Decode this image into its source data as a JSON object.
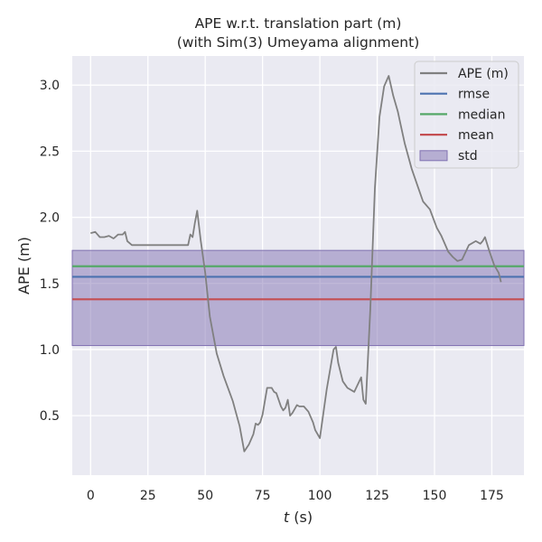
{
  "chart_data": {
    "type": "line",
    "title": "APE w.r.t. translation part (m)",
    "subtitle": "(with Sim(3) Umeyama alignment)",
    "xlabel_italic": "t",
    "xlabel_unit": " (s)",
    "ylabel": "APE (m)",
    "xlim": [
      -8,
      189
    ],
    "ylim": [
      0.05,
      3.22
    ],
    "xticks": [
      0,
      25,
      50,
      75,
      100,
      125,
      150,
      175
    ],
    "yticks": [
      0.5,
      1.0,
      1.5,
      2.0,
      2.5,
      3.0
    ],
    "ytick_labels": [
      "0.5",
      "1.0",
      "1.5",
      "2.0",
      "2.5",
      "3.0"
    ],
    "grid": true,
    "legend_position": "top-right",
    "colors": {
      "background": "#eaeaf2",
      "ape": "#808080",
      "rmse": "#4c72b0",
      "median": "#55a868",
      "mean": "#c44e52",
      "std": "#8172b2"
    },
    "legend": [
      {
        "key": "ape",
        "label": "APE (m)",
        "kind": "line"
      },
      {
        "key": "rmse",
        "label": "rmse",
        "kind": "line"
      },
      {
        "key": "median",
        "label": "median",
        "kind": "line"
      },
      {
        "key": "mean",
        "label": "mean",
        "kind": "line"
      },
      {
        "key": "std",
        "label": "std",
        "kind": "patch"
      }
    ],
    "statistics": {
      "rmse": 1.55,
      "median": 1.63,
      "mean": 1.38,
      "std_band": [
        1.03,
        1.75
      ]
    },
    "series": [
      {
        "name": "APE (m)",
        "x": [
          0,
          2,
          4,
          6,
          8,
          10,
          12,
          14,
          15,
          16,
          18,
          20,
          25,
          30,
          35,
          40,
          42.5,
          43.5,
          44.5,
          45.5,
          46.5,
          48,
          50,
          52,
          55,
          58,
          62,
          65,
          67,
          69,
          71,
          72,
          73,
          74,
          75,
          77,
          79,
          80,
          81,
          83,
          84,
          85,
          86,
          87,
          88,
          90,
          91,
          93,
          95,
          97,
          98,
          100,
          103,
          106,
          107,
          108,
          110,
          112,
          115,
          118,
          119,
          120,
          122,
          124,
          126,
          128,
          130,
          132,
          134,
          135,
          137,
          140,
          143,
          145,
          148,
          151,
          153,
          156,
          158,
          160,
          162,
          165,
          168,
          170,
          171,
          172,
          174,
          176,
          178,
          179
        ],
        "y": [
          1.88,
          1.89,
          1.85,
          1.85,
          1.86,
          1.84,
          1.87,
          1.87,
          1.89,
          1.82,
          1.79,
          1.79,
          1.79,
          1.79,
          1.79,
          1.79,
          1.79,
          1.87,
          1.85,
          1.96,
          2.05,
          1.83,
          1.58,
          1.25,
          0.97,
          0.8,
          0.61,
          0.42,
          0.23,
          0.28,
          0.36,
          0.44,
          0.43,
          0.45,
          0.51,
          0.71,
          0.71,
          0.68,
          0.67,
          0.57,
          0.54,
          0.56,
          0.62,
          0.5,
          0.52,
          0.58,
          0.57,
          0.57,
          0.53,
          0.45,
          0.39,
          0.33,
          0.7,
          1.0,
          1.02,
          0.9,
          0.76,
          0.71,
          0.68,
          0.79,
          0.62,
          0.59,
          1.3,
          2.22,
          2.76,
          2.99,
          3.07,
          2.92,
          2.8,
          2.72,
          2.56,
          2.37,
          2.22,
          2.12,
          2.06,
          1.92,
          1.86,
          1.74,
          1.7,
          1.67,
          1.68,
          1.79,
          1.82,
          1.8,
          1.82,
          1.85,
          1.74,
          1.64,
          1.58,
          1.51
        ]
      }
    ]
  }
}
